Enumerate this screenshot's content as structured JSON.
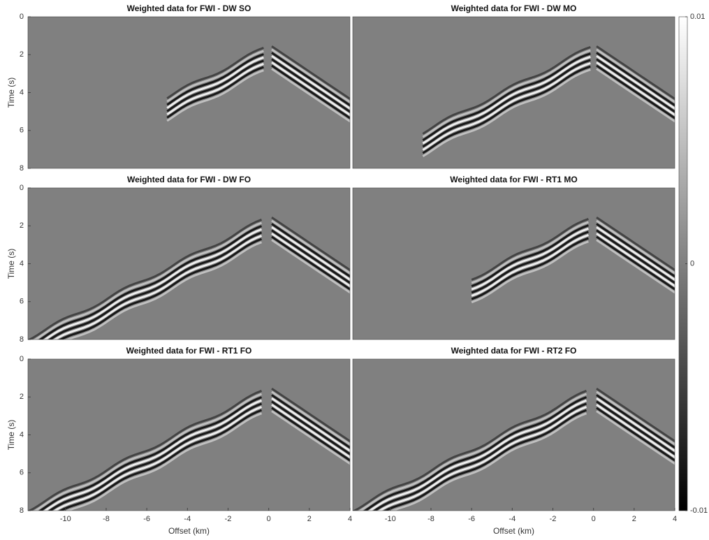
{
  "chart_data": [
    {
      "type": "heatmap",
      "title": "Weighted data for FWI - DW SO",
      "xlim": [
        -11.85,
        4
      ],
      "ylim": [
        0,
        8
      ],
      "y_reversed": true,
      "yticks": [
        0,
        2,
        4,
        6,
        8
      ],
      "ylabel": "Time (s)"
    },
    {
      "type": "heatmap",
      "title": "Weighted data for FWI - DW MO",
      "xlim": [
        -11.85,
        4
      ],
      "ylim": [
        0,
        8
      ],
      "y_reversed": true
    },
    {
      "type": "heatmap",
      "title": "Weighted data for FWI - DW FO",
      "xlim": [
        -11.85,
        4
      ],
      "ylim": [
        0,
        8
      ],
      "y_reversed": true,
      "yticks": [
        0,
        2,
        4,
        6,
        8
      ],
      "ylabel": "Time (s)"
    },
    {
      "type": "heatmap",
      "title": "Weighted data for FWI - RT1 MO",
      "xlim": [
        -11.85,
        4
      ],
      "ylim": [
        0,
        8
      ],
      "y_reversed": true
    },
    {
      "type": "heatmap",
      "title": "Weighted data for FWI - RT1 FO",
      "xlim": [
        -11.85,
        4
      ],
      "ylim": [
        0,
        8
      ],
      "y_reversed": true,
      "yticks": [
        0,
        2,
        4,
        6,
        8
      ],
      "ylabel": "Time (s)",
      "xticks": [
        -10,
        -8,
        -6,
        -4,
        -2,
        0,
        2,
        4
      ],
      "xlabel": "Offset (km)"
    },
    {
      "type": "heatmap",
      "title": "Weighted data for FWI - RT2 FO",
      "xlim": [
        -11.85,
        4
      ],
      "ylim": [
        0,
        8
      ],
      "y_reversed": true,
      "xticks": [
        -10,
        -8,
        -6,
        -4,
        -2,
        0,
        2,
        4
      ],
      "xlabel": "Offset (km)"
    }
  ],
  "colorbar": {
    "clim": [
      -0.01,
      0.01
    ],
    "ticks": [
      -0.01,
      0,
      0.01
    ]
  }
}
